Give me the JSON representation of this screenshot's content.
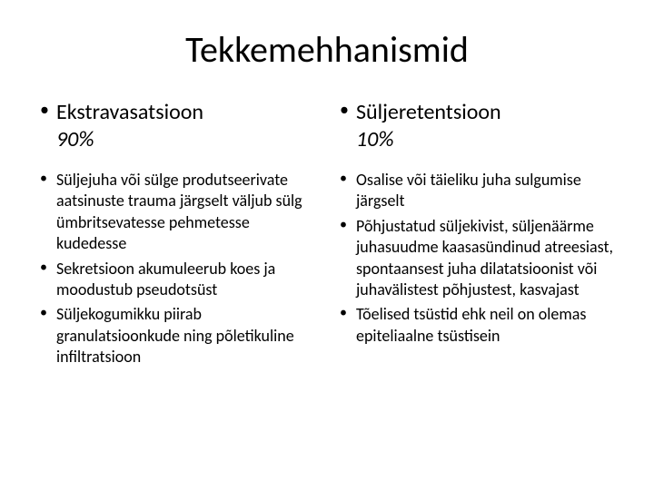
{
  "title": "Tekkemehhanismid",
  "left": {
    "heading": "Ekstravasatsioon",
    "subheading": "90%",
    "items": [
      "Süljejuha või sülge produtseerivate aatsinuste trauma järgselt väljub sülg ümbritsevatesse pehmetesse kudedesse",
      "Sekretsioon akumuleerub koes ja moodustub pseudotsüst",
      "Süljekogumikku piirab granulatsioonkude ning põletikuline infiltratsioon"
    ]
  },
  "right": {
    "heading": "Süljeretentsioon",
    "subheading": "10%",
    "items": [
      "Osalise või täieliku juha sulgumise järgselt",
      "Põhjustatud süljekivist, süljenäärme juhasuudme kaasasündinud atreesiast, spontaansest juha dilatatsioonist või juhavälistest põhjustest, kasvajast",
      "Tõelised tsüstid ehk neil on olemas epiteliaalne tsüstisein"
    ]
  },
  "colors": {
    "background": "#ffffff",
    "text": "#000000"
  }
}
